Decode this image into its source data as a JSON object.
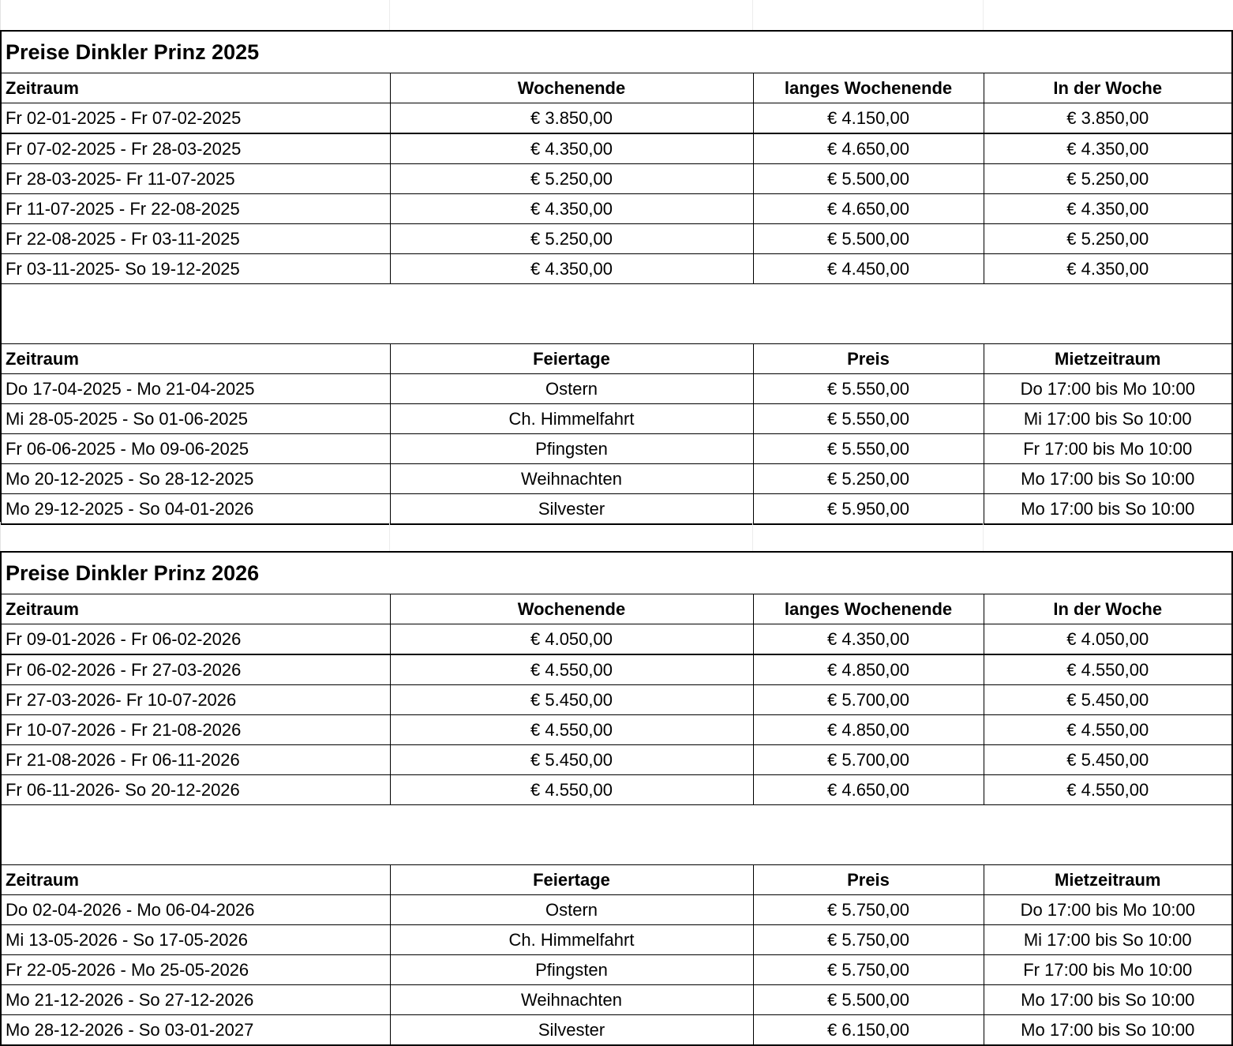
{
  "sections": [
    {
      "title": "Preise Dinkler Prinz 2025",
      "season_table": {
        "headers": [
          "Zeitraum",
          "Wochenende",
          "langes Wochenende",
          "In der Woche"
        ],
        "rows": [
          [
            "Fr 02-01-2025 - Fr 07-02-2025",
            "€ 3.850,00",
            "€ 4.150,00",
            "€ 3.850,00"
          ],
          [
            "Fr 07-02-2025 - Fr 28-03-2025",
            "€ 4.350,00",
            "€ 4.650,00",
            "€ 4.350,00"
          ],
          [
            "Fr 28-03-2025- Fr 11-07-2025",
            "€ 5.250,00",
            "€ 5.500,00",
            "€ 5.250,00"
          ],
          [
            "Fr 11-07-2025 - Fr 22-08-2025",
            "€ 4.350,00",
            "€ 4.650,00",
            "€ 4.350,00"
          ],
          [
            "Fr 22-08-2025 - Fr 03-11-2025",
            "€ 5.250,00",
            "€ 5.500,00",
            "€ 5.250,00"
          ],
          [
            "Fr 03-11-2025- So 19-12-2025",
            "€ 4.350,00",
            "€ 4.450,00",
            "€ 4.350,00"
          ]
        ]
      },
      "holiday_table": {
        "headers": [
          "Zeitraum",
          "Feiertage",
          "Preis",
          "Mietzeitraum"
        ],
        "rows": [
          [
            "Do 17-04-2025 - Mo 21-04-2025",
            "Ostern",
            "€ 5.550,00",
            "Do 17:00 bis Mo 10:00"
          ],
          [
            "Mi 28-05-2025 - So 01-06-2025",
            "Ch. Himmelfahrt",
            "€ 5.550,00",
            "Mi 17:00 bis So 10:00"
          ],
          [
            "Fr 06-06-2025 - Mo 09-06-2025",
            "Pfingsten",
            "€ 5.550,00",
            "Fr 17:00 bis Mo 10:00"
          ],
          [
            "Mo 20-12-2025 - So 28-12-2025",
            "Weihnachten",
            "€ 5.250,00",
            "Mo 17:00 bis So 10:00"
          ],
          [
            "Mo 29-12-2025 - So 04-01-2026",
            "Silvester",
            "€ 5.950,00",
            "Mo 17:00 bis So 10:00"
          ]
        ]
      }
    },
    {
      "title": "Preise Dinkler Prinz 2026",
      "season_table": {
        "headers": [
          "Zeitraum",
          "Wochenende",
          "langes Wochenende",
          "In der Woche"
        ],
        "rows": [
          [
            "Fr 09-01-2026 - Fr 06-02-2026",
            "€ 4.050,00",
            "€ 4.350,00",
            "€ 4.050,00"
          ],
          [
            "Fr 06-02-2026 - Fr 27-03-2026",
            "€ 4.550,00",
            "€ 4.850,00",
            "€ 4.550,00"
          ],
          [
            "Fr 27-03-2026- Fr 10-07-2026",
            "€ 5.450,00",
            "€ 5.700,00",
            "€ 5.450,00"
          ],
          [
            "Fr 10-07-2026 - Fr 21-08-2026",
            "€ 4.550,00",
            "€ 4.850,00",
            "€ 4.550,00"
          ],
          [
            "Fr 21-08-2026 - Fr 06-11-2026",
            "€ 5.450,00",
            "€ 5.700,00",
            "€ 5.450,00"
          ],
          [
            "Fr 06-11-2026- So 20-12-2026",
            "€ 4.550,00",
            "€ 4.650,00",
            "€ 4.550,00"
          ]
        ]
      },
      "holiday_table": {
        "headers": [
          "Zeitraum",
          "Feiertage",
          "Preis",
          "Mietzeitraum"
        ],
        "rows": [
          [
            "Do 02-04-2026 - Mo 06-04-2026",
            "Ostern",
            "€ 5.750,00",
            "Do 17:00 bis Mo 10:00"
          ],
          [
            "Mi 13-05-2026 - So 17-05-2026",
            "Ch. Himmelfahrt",
            "€ 5.750,00",
            "Mi 17:00 bis So 10:00"
          ],
          [
            "Fr 22-05-2026 - Mo 25-05-2026",
            "Pfingsten",
            "€ 5.750,00",
            "Fr 17:00 bis Mo 10:00"
          ],
          [
            "Mo 21-12-2026 - So 27-12-2026",
            "Weihnachten",
            "€ 5.500,00",
            "Mo 17:00 bis So 10:00"
          ],
          [
            "Mo 28-12-2026 - So 03-01-2027",
            "Silvester",
            "€ 6.150,00",
            "Mo 17:00 bis So 10:00"
          ]
        ]
      }
    }
  ]
}
